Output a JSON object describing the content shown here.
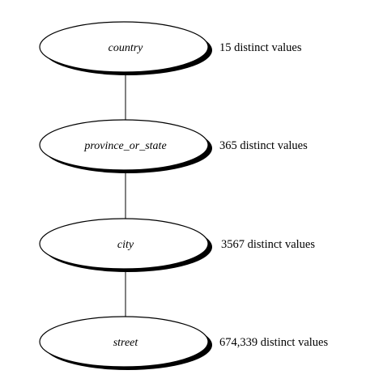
{
  "diagram": {
    "type": "concept-hierarchy",
    "levels": [
      {
        "name": "country",
        "count_label": "15 distinct values"
      },
      {
        "name": "province_or_state",
        "count_label": "365 distinct values"
      },
      {
        "name": "city",
        "count_label": "3567 distinct values"
      },
      {
        "name": "street",
        "count_label": "674,339 distinct values"
      }
    ]
  }
}
